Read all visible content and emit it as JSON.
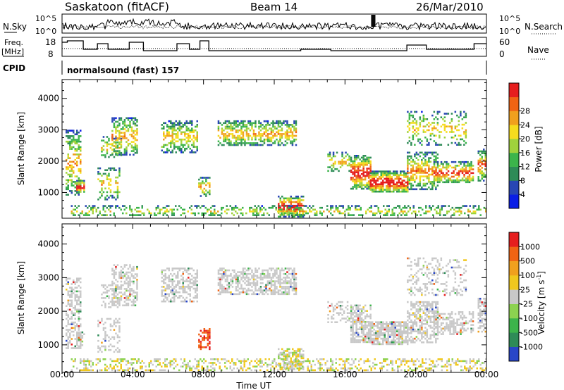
{
  "header": {
    "site": "Saskatoon (fitACF)",
    "beam": "Beam 14",
    "date": "26/Mar/2010"
  },
  "status_panel": {
    "nsky_label": "N.Sky",
    "nsearch_label": "N.Search",
    "nsky_ticks": [
      "10^5",
      "10^0"
    ],
    "freq_label_line1": "Freq.",
    "freq_label_line2": "[MHz]",
    "freq_ticks": [
      "18",
      "8"
    ],
    "nave_label": "Nave",
    "nave_ticks": [
      "60",
      "0"
    ],
    "cpid_label": "CPID",
    "cpid_value": "normalsound (fast) 157"
  },
  "chart_data": [
    {
      "type": "heatmap",
      "name": "power-panel",
      "ylabel": "Slant Range [km]",
      "ylim": [
        180,
        4600
      ],
      "yticks": [
        "1000",
        "2000",
        "3000",
        "4000"
      ],
      "xlim_hours": [
        0,
        24
      ],
      "colorbar_label": "Power [dB]",
      "colorbar_ticks": [
        "4",
        "8",
        "12",
        "16",
        "20",
        "24",
        "28"
      ],
      "colorbar_colors": [
        "#0a1ee6",
        "#2846b4",
        "#2e8b57",
        "#3cb44b",
        "#a0d23c",
        "#f5dc1e",
        "#f0a01e",
        "#f06414",
        "#e61e1e"
      ]
    },
    {
      "type": "heatmap",
      "name": "velocity-panel",
      "ylabel": "Slant Range [km]",
      "ylim": [
        180,
        4600
      ],
      "yticks": [
        "1000",
        "2000",
        "3000",
        "4000"
      ],
      "xlim_hours": [
        0,
        24
      ],
      "colorbar_label": "Velocity [m s",
      "colorbar_label_sup": "-1",
      "colorbar_label_end": "]",
      "colorbar_ticks": [
        "1000",
        "500",
        "100",
        "25",
        "-25",
        "-100",
        "-500",
        "-1000"
      ],
      "colorbar_colors": [
        "#2846c8",
        "#2e8b57",
        "#3cb44b",
        "#8cd250",
        "#c8c8c8",
        "#f0c81e",
        "#f0a01e",
        "#f06414",
        "#e61e1e"
      ]
    }
  ],
  "x_axis": {
    "label": "Time UT",
    "ticks": [
      "00:00",
      "04:00",
      "08:00",
      "12:00",
      "16:00",
      "20:00",
      "00:00"
    ]
  }
}
